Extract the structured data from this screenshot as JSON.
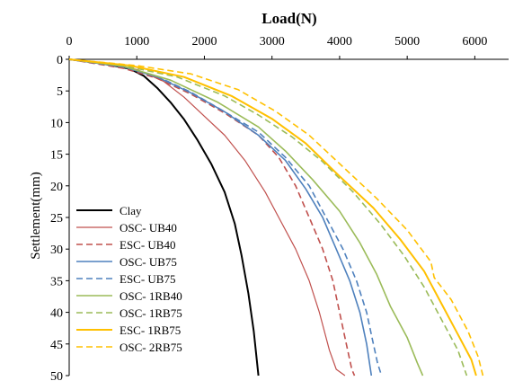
{
  "chart_data": {
    "type": "line",
    "title": "",
    "xlabel": "Load(N)",
    "ylabel": "Settlement(mm)",
    "xlim": [
      0,
      6500
    ],
    "ylim": [
      0,
      50
    ],
    "x_axis_position": "top",
    "y_axis_inverted": true,
    "xticks": [
      "0",
      "1000",
      "2000",
      "3000",
      "4000",
      "5000",
      "6000"
    ],
    "yticks": [
      "0",
      "5",
      "10",
      "15",
      "20",
      "25",
      "30",
      "35",
      "40",
      "45",
      "50"
    ],
    "grid": false,
    "legend_position": "bottom-left",
    "series": [
      {
        "name": "Clay",
        "color": "#000000",
        "dash": "solid",
        "width": 2,
        "points": [
          [
            0,
            0
          ],
          [
            500,
            0.7
          ],
          [
            900,
            1.5
          ],
          [
            1100,
            2.6
          ],
          [
            1300,
            4.5
          ],
          [
            1500,
            6.8
          ],
          [
            1700,
            9.5
          ],
          [
            1900,
            12.8
          ],
          [
            2100,
            16.5
          ],
          [
            2300,
            21
          ],
          [
            2450,
            26
          ],
          [
            2550,
            31
          ],
          [
            2650,
            37
          ],
          [
            2730,
            43
          ],
          [
            2800,
            50
          ]
        ]
      },
      {
        "name": "OSC- UB40",
        "color": "#c0504d",
        "dash": "solid",
        "width": 1.2,
        "points": [
          [
            0,
            0
          ],
          [
            500,
            0.6
          ],
          [
            1000,
            1.6
          ],
          [
            1400,
            3.5
          ],
          [
            1700,
            6
          ],
          [
            2000,
            9
          ],
          [
            2300,
            12
          ],
          [
            2600,
            16
          ],
          [
            2900,
            21
          ],
          [
            3100,
            25
          ],
          [
            3350,
            30
          ],
          [
            3550,
            35
          ],
          [
            3700,
            40
          ],
          [
            3850,
            46
          ],
          [
            3950,
            49
          ],
          [
            4080,
            50
          ]
        ]
      },
      {
        "name": "ESC- UB40",
        "color": "#c0504d",
        "dash": "dashed",
        "width": 1.6,
        "points": [
          [
            0,
            0
          ],
          [
            800,
            1.4
          ],
          [
            1300,
            3
          ],
          [
            1800,
            5.5
          ],
          [
            2300,
            8.5
          ],
          [
            2800,
            12
          ],
          [
            3100,
            15.5
          ],
          [
            3350,
            20
          ],
          [
            3550,
            25
          ],
          [
            3750,
            30
          ],
          [
            3900,
            35
          ],
          [
            4000,
            40
          ],
          [
            4100,
            45
          ],
          [
            4180,
            49
          ],
          [
            4220,
            50
          ]
        ]
      },
      {
        "name": "OSC- UB75",
        "color": "#4f81bd",
        "dash": "solid",
        "width": 1.6,
        "points": [
          [
            0,
            0
          ],
          [
            800,
            1.2
          ],
          [
            1300,
            2.8
          ],
          [
            1800,
            5.3
          ],
          [
            2300,
            8.3
          ],
          [
            2800,
            12
          ],
          [
            3200,
            16
          ],
          [
            3500,
            20.5
          ],
          [
            3750,
            25
          ],
          [
            3950,
            30
          ],
          [
            4150,
            35
          ],
          [
            4300,
            40
          ],
          [
            4400,
            45
          ],
          [
            4470,
            50
          ]
        ]
      },
      {
        "name": "ESC- UB75",
        "color": "#4f81bd",
        "dash": "dashed",
        "width": 1.6,
        "points": [
          [
            0,
            0
          ],
          [
            800,
            1.2
          ],
          [
            1300,
            2.7
          ],
          [
            1800,
            5.2
          ],
          [
            2300,
            8.3
          ],
          [
            2800,
            11.5
          ],
          [
            3200,
            15.5
          ],
          [
            3550,
            20
          ],
          [
            3800,
            25
          ],
          [
            4050,
            30
          ],
          [
            4250,
            35
          ],
          [
            4400,
            40
          ],
          [
            4480,
            44
          ],
          [
            4560,
            48
          ],
          [
            4620,
            50
          ]
        ]
      },
      {
        "name": "OSC- 1RB40",
        "color": "#9bbb59",
        "dash": "solid",
        "width": 1.6,
        "points": [
          [
            0,
            0
          ],
          [
            800,
            1.1
          ],
          [
            1500,
            3.3
          ],
          [
            2200,
            6.8
          ],
          [
            2800,
            10.7
          ],
          [
            3200,
            14.5
          ],
          [
            3600,
            19
          ],
          [
            4000,
            24
          ],
          [
            4300,
            29
          ],
          [
            4550,
            34
          ],
          [
            4750,
            39
          ],
          [
            5000,
            44
          ],
          [
            5150,
            48
          ],
          [
            5230,
            50
          ]
        ]
      },
      {
        "name": "OSC- 1RB75",
        "color": "#9bbb59",
        "dash": "dashed",
        "width": 1.6,
        "points": [
          [
            0,
            0
          ],
          [
            800,
            1
          ],
          [
            1600,
            2.8
          ],
          [
            2300,
            5.8
          ],
          [
            2800,
            8.8
          ],
          [
            3300,
            12.3
          ],
          [
            3750,
            16.2
          ],
          [
            4200,
            21
          ],
          [
            4600,
            26
          ],
          [
            4950,
            31
          ],
          [
            5250,
            36
          ],
          [
            5500,
            41
          ],
          [
            5750,
            46
          ],
          [
            5880,
            50
          ]
        ]
      },
      {
        "name": "ESC- 1RB75",
        "color": "#ffc000",
        "dash": "solid",
        "width": 2,
        "points": [
          [
            0,
            0
          ],
          [
            900,
            1
          ],
          [
            1700,
            2.8
          ],
          [
            2400,
            5.8
          ],
          [
            3000,
            9.4
          ],
          [
            3500,
            13.3
          ],
          [
            4000,
            18.5
          ],
          [
            4500,
            23.5
          ],
          [
            4900,
            28.5
          ],
          [
            5250,
            33.5
          ],
          [
            5500,
            38.5
          ],
          [
            5750,
            43.5
          ],
          [
            5950,
            47.5
          ],
          [
            6020,
            50
          ]
        ]
      },
      {
        "name": "OSC- 2RB75",
        "color": "#ffc000",
        "dash": "dashed",
        "width": 1.6,
        "points": [
          [
            0,
            0
          ],
          [
            1000,
            1
          ],
          [
            1800,
            2.3
          ],
          [
            2500,
            4.8
          ],
          [
            3050,
            8.2
          ],
          [
            3550,
            12
          ],
          [
            4050,
            17
          ],
          [
            4550,
            22
          ],
          [
            5000,
            27
          ],
          [
            5350,
            32
          ],
          [
            5400,
            34.5
          ],
          [
            5650,
            38
          ],
          [
            5900,
            43
          ],
          [
            6050,
            47
          ],
          [
            6120,
            50
          ]
        ]
      }
    ]
  }
}
